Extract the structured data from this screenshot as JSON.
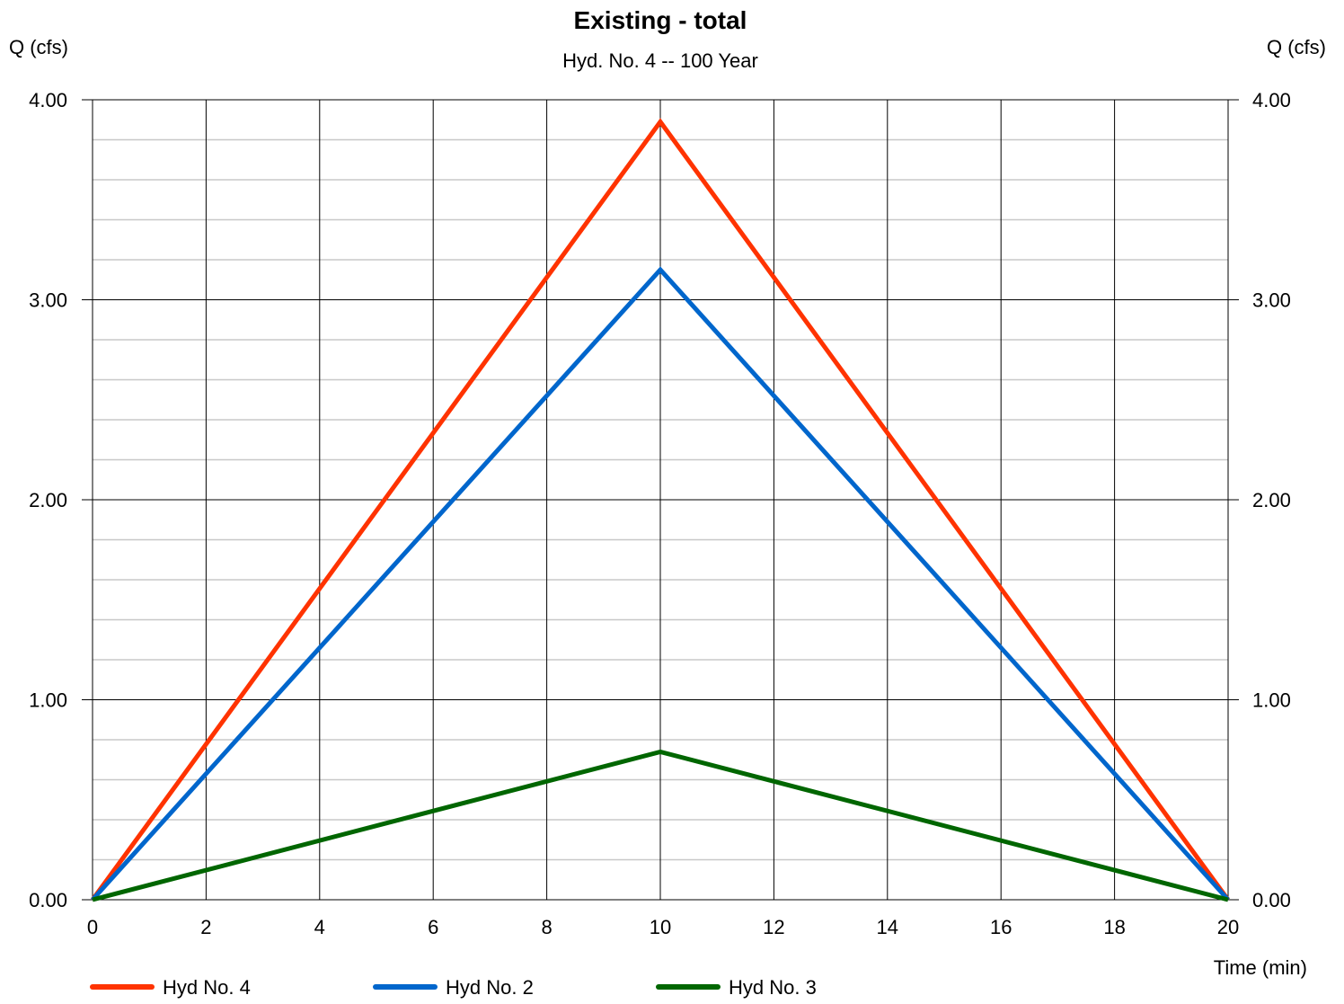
{
  "chart_data": {
    "type": "line",
    "title": "Existing - total",
    "subtitle": "Hyd. No. 4 -- 100 Year",
    "ylabel_left": "Q (cfs)",
    "ylabel_right": "Q (cfs)",
    "xlabel": "Time (min)",
    "xlim": [
      0,
      20
    ],
    "ylim": [
      0,
      4
    ],
    "x_ticks": [
      0,
      2,
      4,
      6,
      8,
      10,
      12,
      14,
      16,
      18,
      20
    ],
    "x_tick_labels": [
      "0",
      "2",
      "4",
      "6",
      "8",
      "10",
      "12",
      "14",
      "16",
      "18",
      "20"
    ],
    "y_ticks": [
      0,
      1,
      2,
      3,
      4
    ],
    "y_tick_labels": [
      "0.00",
      "1.00",
      "2.00",
      "3.00",
      "4.00"
    ],
    "y_minor_step": 0.2,
    "grid": true,
    "legend_position": "bottom",
    "series": [
      {
        "name": "Hyd No. 4",
        "color": "#ff3300",
        "x": [
          0,
          10,
          20
        ],
        "y": [
          0,
          3.89,
          0
        ]
      },
      {
        "name": "Hyd No. 2",
        "color": "#0066cc",
        "x": [
          0,
          10,
          20
        ],
        "y": [
          0,
          3.15,
          0
        ]
      },
      {
        "name": "Hyd No. 3",
        "color": "#006600",
        "x": [
          0,
          10,
          20
        ],
        "y": [
          0,
          0.74,
          0
        ]
      }
    ]
  }
}
